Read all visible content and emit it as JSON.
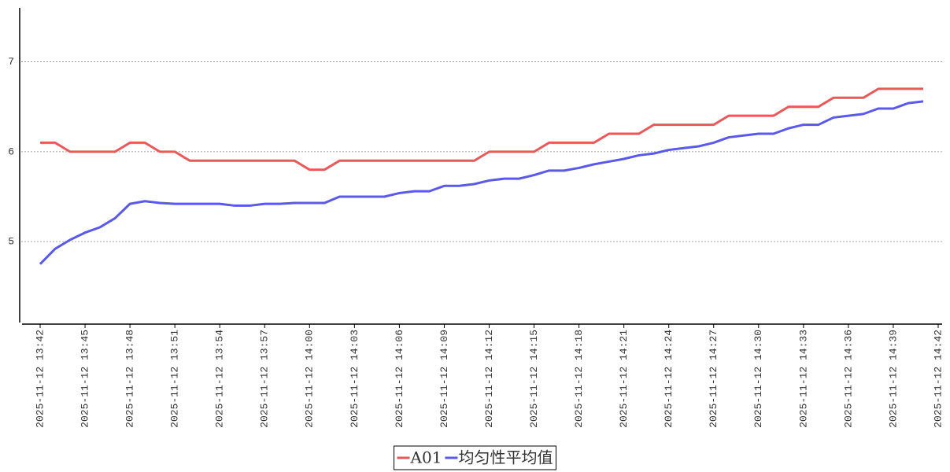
{
  "chart_data": {
    "type": "line",
    "x": [
      "2025-11-12 13:42",
      "2025-11-12 13:43",
      "2025-11-12 13:44",
      "2025-11-12 13:45",
      "2025-11-12 13:46",
      "2025-11-12 13:47",
      "2025-11-12 13:48",
      "2025-11-12 13:49",
      "2025-11-12 13:50",
      "2025-11-12 13:51",
      "2025-11-12 13:52",
      "2025-11-12 13:53",
      "2025-11-12 13:54",
      "2025-11-12 13:55",
      "2025-11-12 13:56",
      "2025-11-12 13:57",
      "2025-11-12 13:58",
      "2025-11-12 13:59",
      "2025-11-12 14:00",
      "2025-11-12 14:01",
      "2025-11-12 14:02",
      "2025-11-12 14:03",
      "2025-11-12 14:04",
      "2025-11-12 14:05",
      "2025-11-12 14:06",
      "2025-11-12 14:07",
      "2025-11-12 14:08",
      "2025-11-12 14:09",
      "2025-11-12 14:10",
      "2025-11-12 14:11",
      "2025-11-12 14:12",
      "2025-11-12 14:13",
      "2025-11-12 14:14",
      "2025-11-12 14:15",
      "2025-11-12 14:16",
      "2025-11-12 14:17",
      "2025-11-12 14:18",
      "2025-11-12 14:19",
      "2025-11-12 14:20",
      "2025-11-12 14:21",
      "2025-11-12 14:22",
      "2025-11-12 14:23",
      "2025-11-12 14:24",
      "2025-11-12 14:25",
      "2025-11-12 14:26",
      "2025-11-12 14:27",
      "2025-11-12 14:28",
      "2025-11-12 14:29",
      "2025-11-12 14:30",
      "2025-11-12 14:31",
      "2025-11-12 14:32",
      "2025-11-12 14:33",
      "2025-11-12 14:34",
      "2025-11-12 14:35",
      "2025-11-12 14:36",
      "2025-11-12 14:37",
      "2025-11-12 14:38",
      "2025-11-12 14:39",
      "2025-11-12 14:40",
      "2025-11-12 14:41"
    ],
    "series": [
      {
        "name": "A01",
        "color": "#e65a5a",
        "values": [
          6.1,
          6.1,
          6.0,
          6.0,
          6.0,
          6.0,
          6.1,
          6.1,
          6.0,
          6.0,
          5.9,
          5.9,
          5.9,
          5.9,
          5.9,
          5.9,
          5.9,
          5.9,
          5.8,
          5.8,
          5.9,
          5.9,
          5.9,
          5.9,
          5.9,
          5.9,
          5.9,
          5.9,
          5.9,
          5.9,
          6.0,
          6.0,
          6.0,
          6.0,
          6.1,
          6.1,
          6.1,
          6.1,
          6.2,
          6.2,
          6.2,
          6.3,
          6.3,
          6.3,
          6.3,
          6.3,
          6.4,
          6.4,
          6.4,
          6.4,
          6.5,
          6.5,
          6.5,
          6.6,
          6.6,
          6.6,
          6.7,
          6.7,
          6.7,
          6.7
        ]
      },
      {
        "name": "均匀性平均值",
        "color": "#5a5ae6",
        "values": [
          4.75,
          4.92,
          5.02,
          5.1,
          5.16,
          5.26,
          5.42,
          5.45,
          5.43,
          5.42,
          5.42,
          5.42,
          5.42,
          5.4,
          5.4,
          5.42,
          5.42,
          5.43,
          5.43,
          5.43,
          5.5,
          5.5,
          5.5,
          5.5,
          5.54,
          5.56,
          5.56,
          5.62,
          5.62,
          5.64,
          5.68,
          5.7,
          5.7,
          5.74,
          5.79,
          5.79,
          5.82,
          5.86,
          5.89,
          5.92,
          5.96,
          5.98,
          6.02,
          6.04,
          6.06,
          6.1,
          6.16,
          6.18,
          6.2,
          6.2,
          6.26,
          6.3,
          6.3,
          6.38,
          6.4,
          6.42,
          6.48,
          6.48,
          6.54,
          6.56
        ]
      }
    ],
    "xlim": [
      "2025-11-12 13:42",
      "2025-11-12 14:42"
    ],
    "xticks": [
      "2025-11-12 13:42",
      "2025-11-12 13:45",
      "2025-11-12 13:48",
      "2025-11-12 13:51",
      "2025-11-12 13:54",
      "2025-11-12 13:57",
      "2025-11-12 14:00",
      "2025-11-12 14:03",
      "2025-11-12 14:06",
      "2025-11-12 14:09",
      "2025-11-12 14:12",
      "2025-11-12 14:15",
      "2025-11-12 14:18",
      "2025-11-12 14:21",
      "2025-11-12 14:24",
      "2025-11-12 14:27",
      "2025-11-12 14:30",
      "2025-11-12 14:33",
      "2025-11-12 14:36",
      "2025-11-12 14:39",
      "2025-11-12 14:42"
    ],
    "ylim": [
      4.1,
      7.6
    ],
    "yticks": [
      5,
      6,
      7
    ],
    "grid": true,
    "legend": "bottom"
  }
}
